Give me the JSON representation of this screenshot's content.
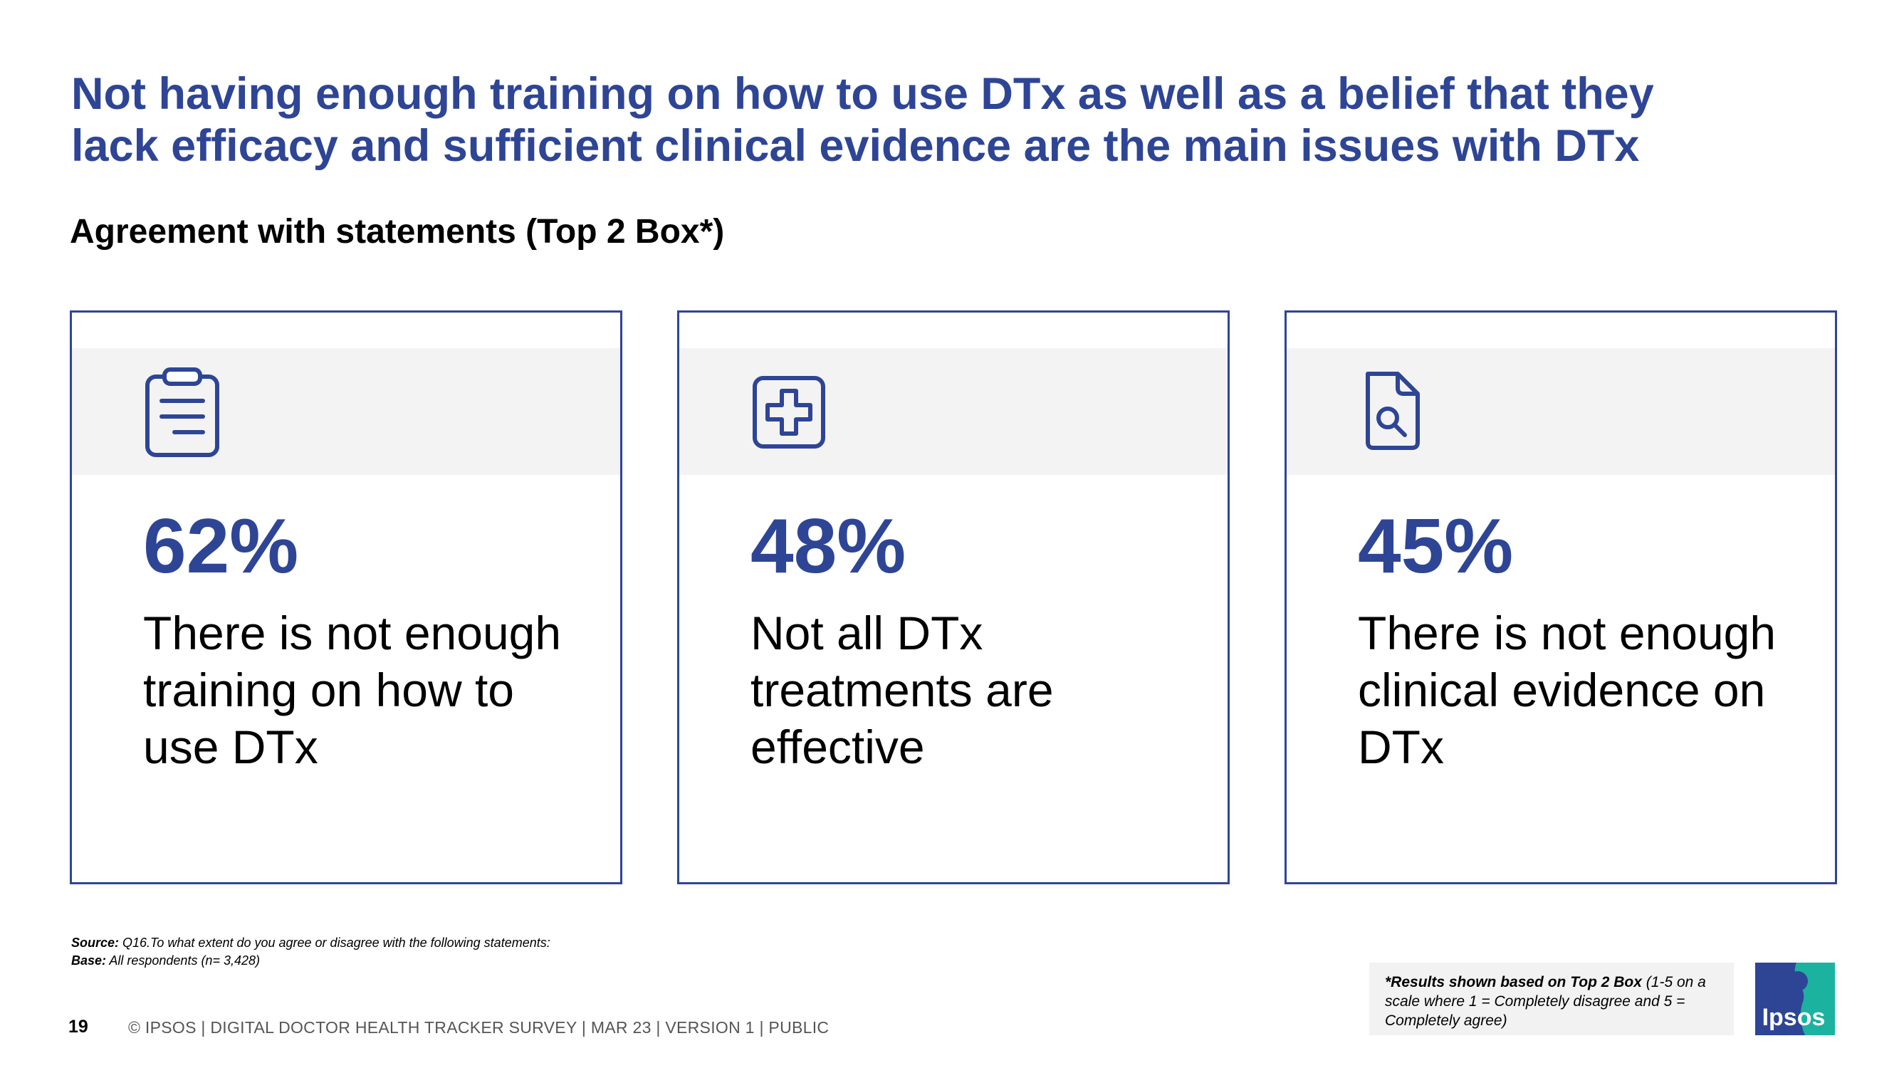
{
  "title": {
    "line1": "Not having enough training on how to use DTx as well as a belief that they",
    "line2": "lack efficacy and sufficient clinical evidence are the main issues with DTx"
  },
  "subtitle": "Agreement with statements (Top 2 Box*)",
  "cards": [
    {
      "icon": "clipboard-icon",
      "value": "62%",
      "text": "There is not enough training on how to use DTx"
    },
    {
      "icon": "medical-cross-icon",
      "value": "48%",
      "text": "Not all DTx treatments are effective"
    },
    {
      "icon": "document-search-icon",
      "value": "45%",
      "text": "There is not enough clinical evidence on DTx"
    }
  ],
  "source": {
    "source_label": "Source:",
    "source_text": " Q16.To what extent do you agree or disagree with the following statements:",
    "base_label": "Base:",
    "base_text": " All respondents (n= 3,428)"
  },
  "note": {
    "bold": "*Results shown based on Top 2 Box",
    "rest": " (1-5 on a scale where 1 = Completely disagree and 5 = Completely agree)"
  },
  "page_number": "19",
  "footer": "© IPSOS | DIGITAL DOCTOR HEALTH TRACKER SURVEY | MAR 23 | VERSION 1 | PUBLIC",
  "logo_text": "Ipsos",
  "colors": {
    "brand_blue": "#2E4596",
    "band_grey": "#F3F3F3",
    "logo_teal": "#1BB2A0"
  }
}
